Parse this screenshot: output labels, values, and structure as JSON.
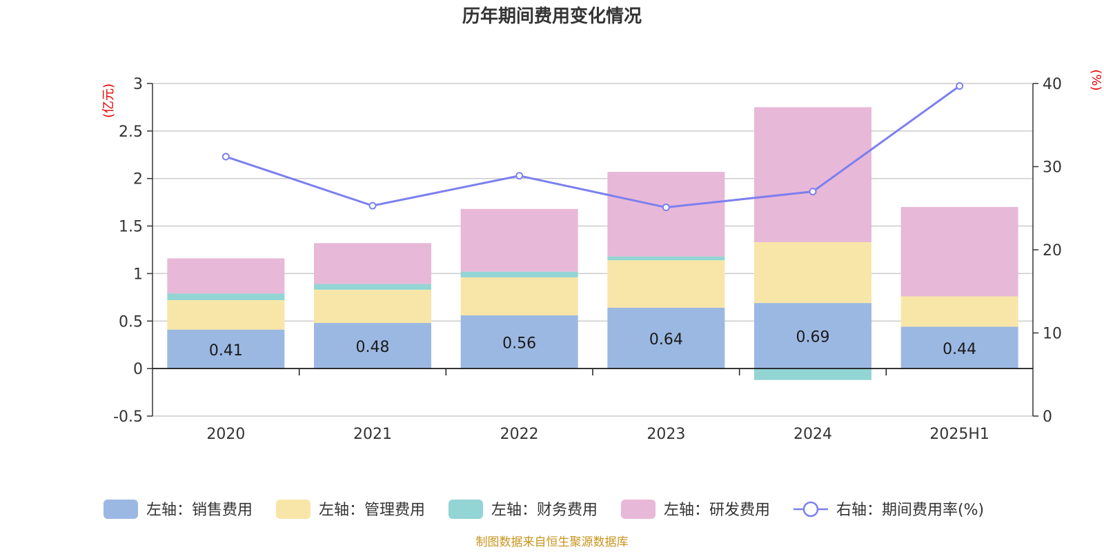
{
  "chart_data": {
    "type": "bar",
    "stacked": true,
    "title": "历年期间费用变化情况",
    "categories": [
      "2020",
      "2021",
      "2022",
      "2023",
      "2024",
      "2025H1"
    ],
    "y_left": {
      "unit": "(亿元)",
      "range": [
        -0.5,
        3
      ],
      "ticks": [
        "3",
        "2.5",
        "2",
        "1.5",
        "1",
        "0.5",
        "0",
        "-0.5"
      ],
      "tick_values": [
        3,
        2.5,
        2,
        1.5,
        1,
        0.5,
        0,
        -0.5
      ]
    },
    "y_right": {
      "unit": "(%)",
      "range": [
        0,
        40
      ],
      "ticks": [
        "40",
        "30",
        "20",
        "10",
        "0"
      ],
      "tick_values": [
        40,
        30,
        20,
        10,
        0
      ]
    },
    "grid": true,
    "legend_position": "bottom",
    "series": [
      {
        "name": "左轴：销售费用",
        "axis": "left",
        "color": "#9bb8e2",
        "values": [
          0.41,
          0.48,
          0.56,
          0.64,
          0.69,
          0.44
        ],
        "labels": [
          "0.41",
          "0.48",
          "0.56",
          "0.64",
          "0.69",
          "0.44"
        ]
      },
      {
        "name": "左轴：管理费用",
        "axis": "left",
        "color": "#f8e6a8",
        "values": [
          0.31,
          0.35,
          0.4,
          0.5,
          0.64,
          0.32
        ]
      },
      {
        "name": "左轴：财务费用",
        "axis": "left",
        "color": "#93d4d4",
        "values": [
          0.07,
          0.06,
          0.06,
          0.04,
          -0.12,
          0.0
        ]
      },
      {
        "name": "左轴：研发费用",
        "axis": "left",
        "color": "#e8b8d8",
        "values": [
          0.37,
          0.43,
          0.66,
          0.89,
          1.42,
          0.94
        ]
      },
      {
        "name": "右轴：期间费用率(%)",
        "axis": "right",
        "type": "line",
        "color": "#7b7ff0",
        "values": [
          31.2,
          25.3,
          28.9,
          25.1,
          27.0,
          39.7
        ]
      }
    ]
  },
  "footer": {
    "source": "制图数据来自恒生聚源数据库"
  }
}
